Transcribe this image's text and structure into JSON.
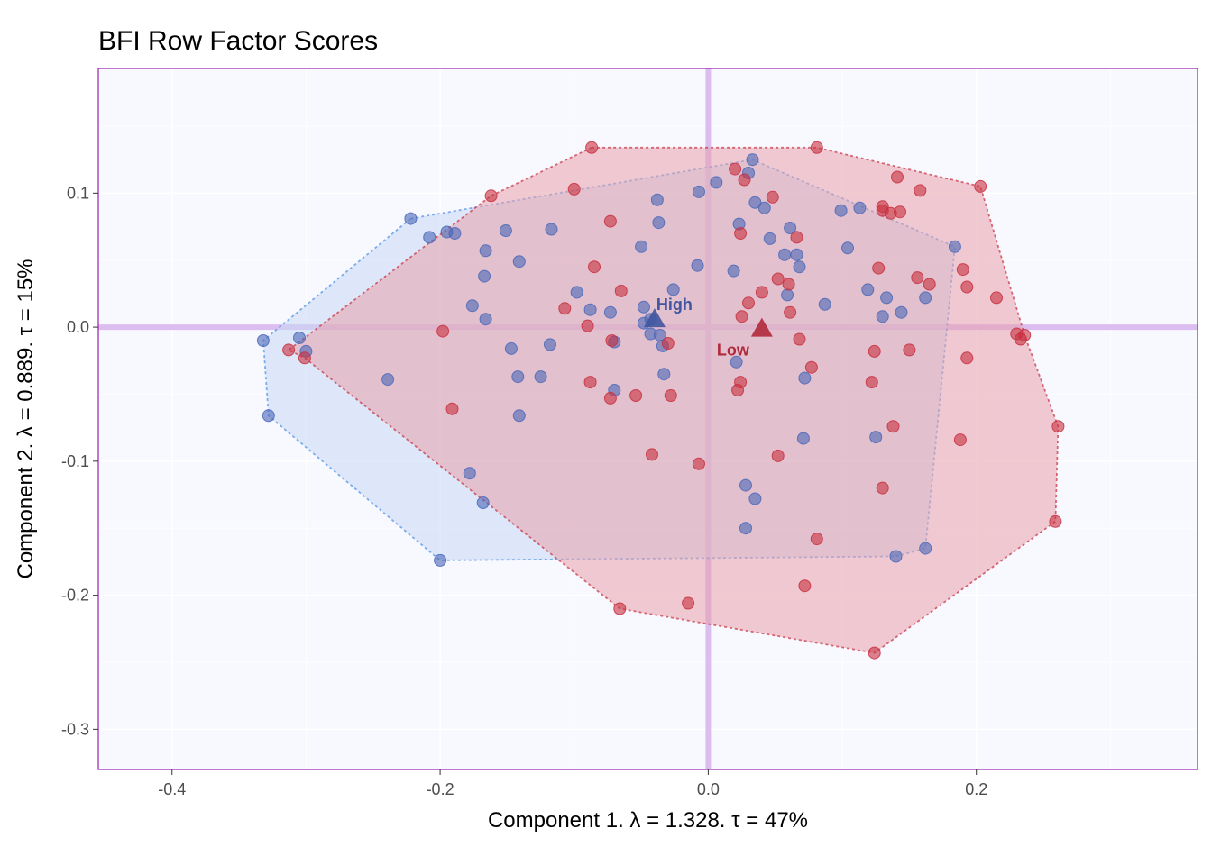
{
  "chart_data": {
    "type": "scatter",
    "title": "BFI Row Factor Scores",
    "xlabel": "Component 1.   λ = 1.328.  τ = 47%",
    "ylabel": "Component 2.   λ = 0.889.  τ = 15%",
    "xlim": [
      -0.455,
      0.365
    ],
    "ylim": [
      -0.33,
      0.193
    ],
    "x_ticks": [
      -0.4,
      -0.2,
      0.0,
      0.2
    ],
    "x_tick_labels": [
      "-0.4",
      "-0.2",
      "0.0",
      "0.2"
    ],
    "y_ticks": [
      -0.3,
      -0.2,
      -0.1,
      0.0,
      0.1
    ],
    "y_tick_labels": [
      "-0.3",
      "-0.2",
      "-0.1",
      "0.0",
      "0.1"
    ],
    "grid": true,
    "colors": {
      "panel_background": "#f8f8ff",
      "panel_border": "#9a1fb0",
      "grid": "#ffffff",
      "origin_lines": "#dcbdf0",
      "high": "#4a68b8",
      "high_edge": "#4a90e2",
      "high_hull_fill": "#c9d9f4",
      "low": "#c8303f",
      "low_hull_fill": "#e8a0ab"
    },
    "series": [
      {
        "name": "High",
        "color": "#4a68b8",
        "hull": [
          [
            -0.222,
            0.081
          ],
          [
            0.033,
            0.125
          ],
          [
            0.184,
            0.06
          ],
          [
            0.162,
            -0.165
          ],
          [
            0.14,
            -0.171
          ],
          [
            -0.2,
            -0.174
          ],
          [
            -0.328,
            -0.066
          ],
          [
            -0.332,
            -0.01
          ]
        ],
        "points": [
          [
            -0.222,
            0.081
          ],
          [
            -0.208,
            0.067
          ],
          [
            -0.195,
            0.071
          ],
          [
            -0.189,
            0.07
          ],
          [
            -0.166,
            0.057
          ],
          [
            -0.151,
            0.072
          ],
          [
            -0.117,
            0.073
          ],
          [
            -0.167,
            0.038
          ],
          [
            -0.141,
            0.049
          ],
          [
            -0.176,
            0.016
          ],
          [
            -0.166,
            0.006
          ],
          [
            -0.147,
            -0.016
          ],
          [
            -0.118,
            -0.013
          ],
          [
            -0.142,
            -0.037
          ],
          [
            -0.125,
            -0.037
          ],
          [
            -0.239,
            -0.039
          ],
          [
            -0.141,
            -0.066
          ],
          [
            -0.178,
            -0.109
          ],
          [
            -0.168,
            -0.131
          ],
          [
            -0.2,
            -0.174
          ],
          [
            -0.328,
            -0.066
          ],
          [
            -0.332,
            -0.01
          ],
          [
            -0.305,
            -0.008
          ],
          [
            -0.3,
            -0.018
          ],
          [
            -0.098,
            0.026
          ],
          [
            -0.088,
            0.013
          ],
          [
            -0.073,
            0.011
          ],
          [
            -0.07,
            -0.011
          ],
          [
            -0.05,
            0.06
          ],
          [
            -0.037,
            0.078
          ],
          [
            -0.038,
            0.095
          ],
          [
            -0.048,
            0.003
          ],
          [
            -0.048,
            0.015
          ],
          [
            -0.043,
            0.006
          ],
          [
            -0.034,
            -0.014
          ],
          [
            -0.036,
            -0.006
          ],
          [
            -0.033,
            -0.035
          ],
          [
            -0.07,
            -0.047
          ],
          [
            -0.026,
            0.028
          ],
          [
            -0.007,
            0.101
          ],
          [
            0.006,
            0.108
          ],
          [
            0.023,
            0.077
          ],
          [
            0.03,
            0.115
          ],
          [
            0.033,
            0.125
          ],
          [
            0.035,
            0.093
          ],
          [
            0.042,
            0.089
          ],
          [
            0.061,
            0.074
          ],
          [
            0.046,
            0.066
          ],
          [
            0.057,
            0.054
          ],
          [
            0.066,
            0.054
          ],
          [
            0.068,
            0.045
          ],
          [
            0.059,
            0.024
          ],
          [
            0.087,
            0.017
          ],
          [
            0.099,
            0.087
          ],
          [
            0.104,
            0.059
          ],
          [
            0.113,
            0.089
          ],
          [
            0.119,
            0.028
          ],
          [
            0.13,
            0.008
          ],
          [
            0.133,
            0.022
          ],
          [
            0.144,
            0.011
          ],
          [
            0.162,
            0.022
          ],
          [
            0.184,
            0.06
          ],
          [
            0.125,
            -0.082
          ],
          [
            0.162,
            -0.165
          ],
          [
            0.14,
            -0.171
          ],
          [
            0.071,
            -0.083
          ],
          [
            0.072,
            -0.038
          ],
          [
            0.021,
            -0.026
          ],
          [
            0.028,
            -0.118
          ],
          [
            0.035,
            -0.128
          ],
          [
            0.028,
            -0.15
          ],
          [
            -0.008,
            0.046
          ],
          [
            0.019,
            0.042
          ],
          [
            -0.043,
            -0.005
          ]
        ]
      },
      {
        "name": "Low",
        "color": "#c8303f",
        "hull": [
          [
            -0.087,
            0.134
          ],
          [
            0.081,
            0.134
          ],
          [
            0.203,
            0.105
          ],
          [
            0.236,
            -0.006
          ],
          [
            0.261,
            -0.074
          ],
          [
            0.259,
            -0.145
          ],
          [
            0.124,
            -0.243
          ],
          [
            -0.066,
            -0.21
          ],
          [
            -0.301,
            -0.023
          ],
          [
            -0.313,
            -0.017
          ],
          [
            -0.162,
            0.098
          ]
        ],
        "points": [
          [
            -0.087,
            0.134
          ],
          [
            -0.1,
            0.103
          ],
          [
            -0.162,
            0.098
          ],
          [
            -0.073,
            0.079
          ],
          [
            -0.085,
            0.045
          ],
          [
            -0.065,
            0.027
          ],
          [
            -0.107,
            0.014
          ],
          [
            -0.09,
            0.001
          ],
          [
            -0.072,
            -0.01
          ],
          [
            -0.088,
            -0.041
          ],
          [
            -0.073,
            -0.053
          ],
          [
            -0.054,
            -0.051
          ],
          [
            -0.028,
            -0.051
          ],
          [
            -0.03,
            -0.012
          ],
          [
            -0.042,
            -0.095
          ],
          [
            -0.198,
            -0.003
          ],
          [
            -0.191,
            -0.061
          ],
          [
            -0.301,
            -0.023
          ],
          [
            -0.313,
            -0.017
          ],
          [
            -0.066,
            -0.21
          ],
          [
            -0.015,
            -0.206
          ],
          [
            -0.007,
            -0.102
          ],
          [
            0.024,
            -0.041
          ],
          [
            0.022,
            -0.047
          ],
          [
            0.025,
            0.008
          ],
          [
            0.03,
            0.018
          ],
          [
            0.04,
            0.026
          ],
          [
            0.06,
            0.032
          ],
          [
            0.052,
            0.036
          ],
          [
            0.061,
            0.011
          ],
          [
            0.066,
            0.067
          ],
          [
            0.068,
            -0.009
          ],
          [
            0.077,
            -0.03
          ],
          [
            0.052,
            -0.096
          ],
          [
            0.081,
            -0.158
          ],
          [
            0.072,
            -0.193
          ],
          [
            0.024,
            0.07
          ],
          [
            0.02,
            0.118
          ],
          [
            0.027,
            0.11
          ],
          [
            0.048,
            0.097
          ],
          [
            0.081,
            0.134
          ],
          [
            0.122,
            -0.041
          ],
          [
            0.124,
            -0.018
          ],
          [
            0.138,
            -0.074
          ],
          [
            0.13,
            -0.12
          ],
          [
            0.124,
            -0.243
          ],
          [
            0.127,
            0.044
          ],
          [
            0.13,
            0.09
          ],
          [
            0.13,
            0.087
          ],
          [
            0.136,
            0.085
          ],
          [
            0.143,
            0.086
          ],
          [
            0.141,
            0.112
          ],
          [
            0.158,
            0.102
          ],
          [
            0.156,
            0.037
          ],
          [
            0.165,
            0.032
          ],
          [
            0.15,
            -0.017
          ],
          [
            0.188,
            -0.084
          ],
          [
            0.19,
            0.043
          ],
          [
            0.193,
            0.03
          ],
          [
            0.215,
            0.022
          ],
          [
            0.203,
            0.105
          ],
          [
            0.193,
            -0.023
          ],
          [
            0.23,
            -0.005
          ],
          [
            0.233,
            -0.009
          ],
          [
            0.236,
            -0.006
          ],
          [
            0.261,
            -0.074
          ],
          [
            0.259,
            -0.145
          ]
        ]
      }
    ],
    "centroids": [
      {
        "name": "High",
        "label": "High",
        "x": -0.04,
        "y": 0.006,
        "color": "#3f55a0"
      },
      {
        "name": "Low",
        "label": "Low",
        "x": 0.04,
        "y": -0.001,
        "color": "#b02a3c"
      }
    ]
  }
}
